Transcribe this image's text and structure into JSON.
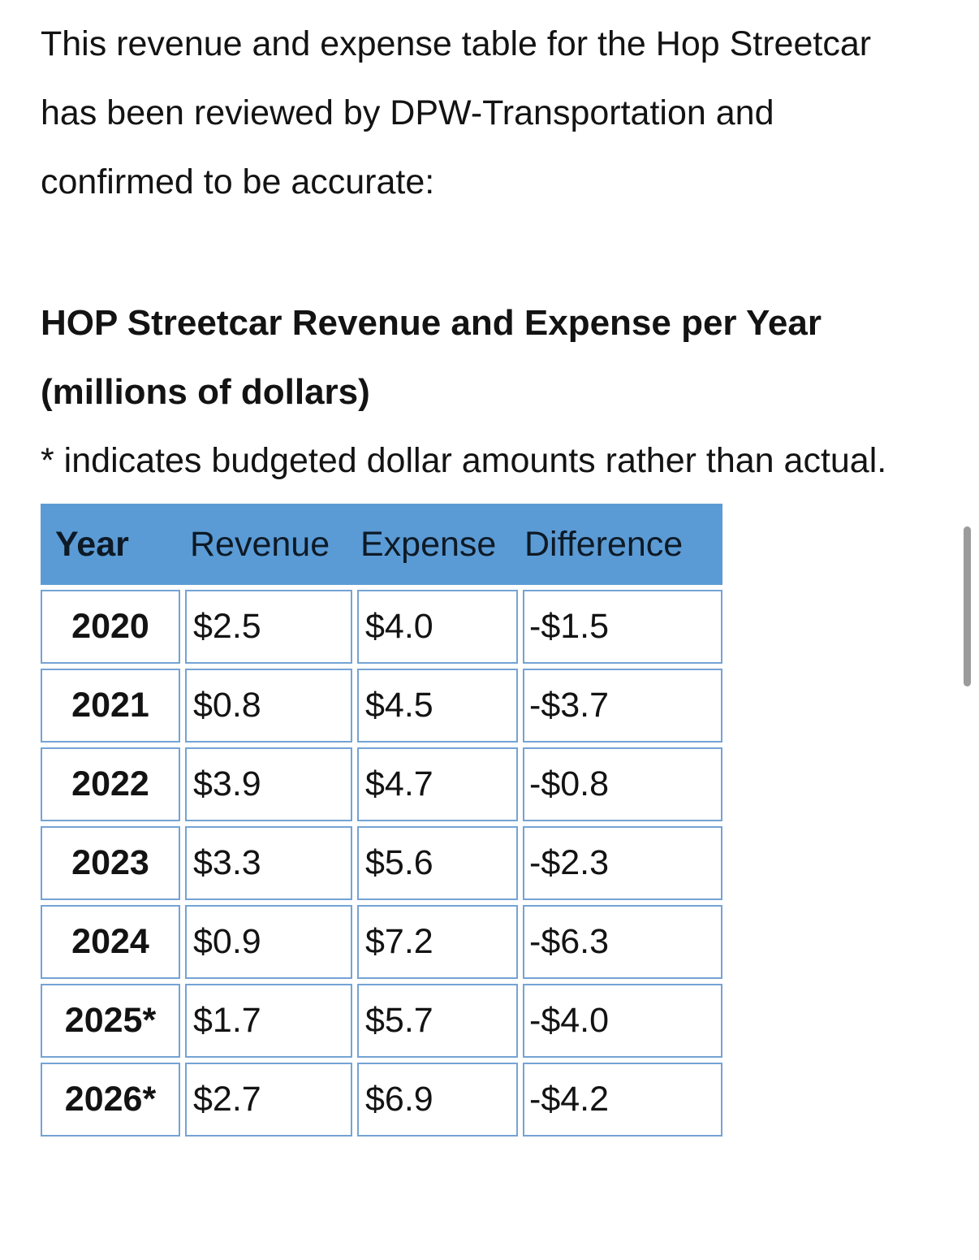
{
  "page": {
    "paragraph": "This revenue and expense table for the Hop Streetcar has been reviewed by DPW-Transportation and confirmed to be accurate:",
    "heading": "HOP Streetcar Revenue and Expense per Year (millions of dollars)",
    "note": "* indicates budgeted dollar amounts rather than actual."
  },
  "table": {
    "headers": [
      "Year",
      "Revenue",
      "Expense",
      "Difference"
    ],
    "rows": [
      {
        "year": "2020",
        "revenue": "$2.5",
        "expense": "$4.0",
        "difference": "-$1.5"
      },
      {
        "year": "2021",
        "revenue": "$0.8",
        "expense": "$4.5",
        "difference": "-$3.7"
      },
      {
        "year": "2022",
        "revenue": "$3.9",
        "expense": "$4.7",
        "difference": "-$0.8"
      },
      {
        "year": "2023",
        "revenue": "$3.3",
        "expense": "$5.6",
        "difference": "-$2.3"
      },
      {
        "year": "2024",
        "revenue": "$0.9",
        "expense": "$7.2",
        "difference": "-$6.3"
      },
      {
        "year": "2025*",
        "revenue": "$1.7",
        "expense": "$5.7",
        "difference": "-$4.0"
      },
      {
        "year": "2026*",
        "revenue": "$2.7",
        "expense": "$6.9",
        "difference": "-$4.2"
      }
    ]
  },
  "colors": {
    "accent": "#5b9bd5",
    "table-border": "#74a3d4",
    "scrollbar": "#9b9b9b",
    "text": "#131313"
  }
}
